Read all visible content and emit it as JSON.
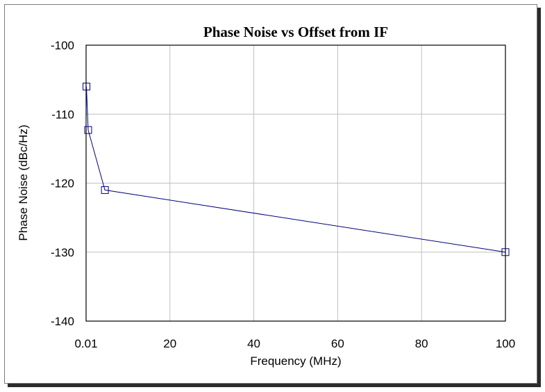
{
  "chart_data": {
    "type": "line",
    "title": "Phase Noise vs Offset from IF",
    "xlabel": "Frequency (MHz)",
    "ylabel": "Phase Noise (dBc/Hz)",
    "xlim": [
      0.01,
      100
    ],
    "ylim": [
      -140,
      -100
    ],
    "x_ticks": [
      0.01,
      20,
      40,
      60,
      80,
      100
    ],
    "x_tick_labels": [
      "0.01",
      "20",
      "40",
      "60",
      "80",
      "100"
    ],
    "y_ticks": [
      -100,
      -110,
      -120,
      -130,
      -140
    ],
    "y_tick_labels": [
      "-100",
      "-110",
      "-120",
      "-130",
      "-140"
    ],
    "grid": true,
    "legend": "none",
    "colors": {
      "line": "#00007a",
      "grid": "#c0c0c0",
      "axes": "#000000"
    },
    "series": [
      {
        "x": [
          0.01,
          0.1,
          0.5,
          4.5,
          100
        ],
        "y": [
          -109.5,
          -106,
          -112.3,
          -121,
          -130
        ],
        "marker": "square"
      }
    ]
  }
}
